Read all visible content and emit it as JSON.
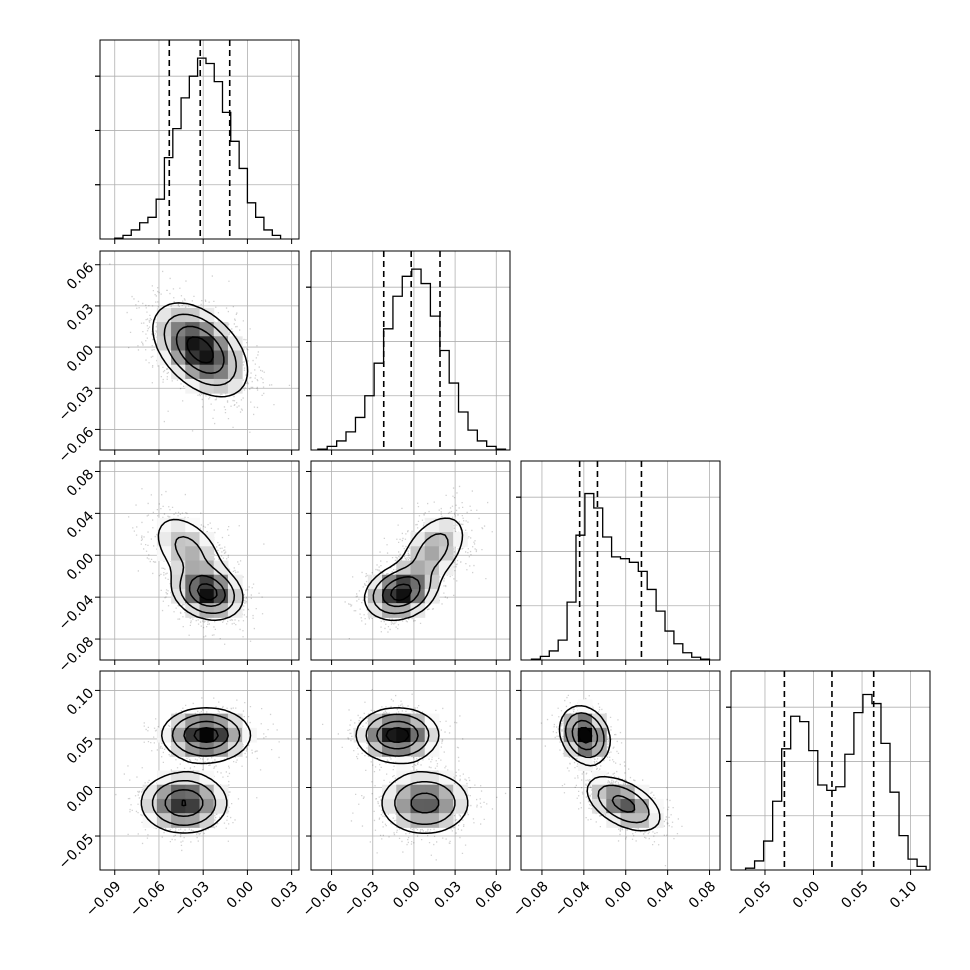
{
  "chart_data": {
    "type": "corner",
    "parameters": 4,
    "panel_grid": "lower-triangle",
    "grid": true,
    "colors": {
      "line": "#000000",
      "grid": "#b0b0b0",
      "density": "#000000"
    },
    "marginals": [
      {
        "param": 0,
        "type": "histogram-step",
        "xlim": [
          -0.1,
          0.035
        ],
        "bin_edges": [
          -0.09,
          -0.0844,
          -0.0788,
          -0.0731,
          -0.0675,
          -0.0619,
          -0.0563,
          -0.0506,
          -0.045,
          -0.0394,
          -0.0338,
          -0.0281,
          -0.0225,
          -0.0169,
          -0.0113,
          -0.0056,
          0.0,
          0.0056,
          0.0112,
          0.0169,
          0.0225
        ],
        "counts": [
          0.005,
          0.02,
          0.05,
          0.09,
          0.12,
          0.22,
          0.45,
          0.61,
          0.78,
          0.9,
          1.0,
          0.97,
          0.87,
          0.7,
          0.54,
          0.39,
          0.2,
          0.12,
          0.05,
          0.02
        ],
        "quantiles": [
          -0.053,
          -0.032,
          -0.012
        ],
        "yticks": [
          0.3,
          0.6,
          0.9
        ]
      },
      {
        "param": 1,
        "type": "histogram-step",
        "xlim": [
          -0.075,
          0.07
        ],
        "bin_edges": [
          -0.07,
          -0.0632,
          -0.0563,
          -0.0495,
          -0.0426,
          -0.0358,
          -0.029,
          -0.0221,
          -0.0153,
          -0.0085,
          -0.0016,
          0.0052,
          0.012,
          0.0189,
          0.0257,
          0.0325,
          0.0394,
          0.0462,
          0.053,
          0.0599,
          0.0667
        ],
        "counts": [
          0.005,
          0.02,
          0.05,
          0.1,
          0.18,
          0.3,
          0.48,
          0.67,
          0.85,
          0.96,
          1.0,
          0.92,
          0.74,
          0.55,
          0.37,
          0.21,
          0.11,
          0.05,
          0.02,
          0.005
        ],
        "quantiles": [
          -0.022,
          -0.002,
          0.019
        ],
        "yticks": [
          0.3,
          0.6,
          0.9
        ]
      },
      {
        "param": 2,
        "type": "histogram-step",
        "xlim": [
          -0.1,
          0.09
        ],
        "bin_edges": [
          -0.09,
          -0.0815,
          -0.073,
          -0.0645,
          -0.056,
          -0.0475,
          -0.039,
          -0.0305,
          -0.022,
          -0.0135,
          -0.005,
          0.0035,
          0.012,
          0.0205,
          0.029,
          0.0375,
          0.046,
          0.0545,
          0.063,
          0.0715,
          0.08
        ],
        "counts": [
          0.005,
          0.02,
          0.05,
          0.11,
          0.32,
          0.69,
          0.92,
          0.84,
          0.68,
          0.57,
          0.56,
          0.54,
          0.49,
          0.39,
          0.27,
          0.16,
          0.09,
          0.04,
          0.015,
          0.005
        ],
        "quantiles": [
          -0.044,
          -0.027,
          0.015
        ],
        "yticks": [
          0.3,
          0.6,
          0.9
        ]
      },
      {
        "param": 3,
        "type": "histogram-step",
        "xlim": [
          -0.085,
          0.12
        ],
        "bin_edges": [
          -0.07,
          -0.0607,
          -0.0514,
          -0.0421,
          -0.0328,
          -0.0235,
          -0.0142,
          -0.0049,
          0.0044,
          0.0137,
          0.023,
          0.0323,
          0.0416,
          0.0509,
          0.0602,
          0.0695,
          0.0788,
          0.0881,
          0.0974,
          0.1067,
          0.116
        ],
        "counts": [
          0.01,
          0.05,
          0.16,
          0.38,
          0.67,
          0.85,
          0.82,
          0.66,
          0.47,
          0.44,
          0.46,
          0.64,
          0.87,
          0.97,
          0.92,
          0.7,
          0.43,
          0.19,
          0.06,
          0.02
        ],
        "quantiles": [
          -0.03,
          0.019,
          0.062
        ],
        "yticks": [
          0.3,
          0.6,
          0.9
        ]
      }
    ],
    "joints": [
      {
        "x_param": 0,
        "y_param": 1,
        "xlim": [
          -0.1,
          0.035
        ],
        "ylim": [
          -0.075,
          0.07
        ],
        "components": [
          {
            "mx": -0.032,
            "my": -0.002,
            "sx": 0.016,
            "sy": 0.017,
            "rho": -0.45,
            "w": 1.0
          }
        ]
      },
      {
        "x_param": 0,
        "y_param": 2,
        "xlim": [
          -0.1,
          0.035
        ],
        "ylim": [
          -0.1,
          0.09
        ],
        "components": [
          {
            "mx": -0.027,
            "my": -0.036,
            "sx": 0.012,
            "sy": 0.013,
            "rho": -0.2,
            "w": 0.6
          },
          {
            "mx": -0.04,
            "my": 0.005,
            "sx": 0.014,
            "sy": 0.02,
            "rho": -0.45,
            "w": 0.4
          }
        ]
      },
      {
        "x_param": 1,
        "y_param": 2,
        "xlim": [
          -0.075,
          0.07
        ],
        "ylim": [
          -0.1,
          0.09
        ],
        "components": [
          {
            "mx": -0.01,
            "my": -0.036,
            "sx": 0.013,
            "sy": 0.013,
            "rho": 0.2,
            "w": 0.6
          },
          {
            "mx": 0.014,
            "my": 0.005,
            "sx": 0.014,
            "sy": 0.02,
            "rho": 0.45,
            "w": 0.4
          }
        ]
      },
      {
        "x_param": 0,
        "y_param": 3,
        "xlim": [
          -0.1,
          0.035
        ],
        "ylim": [
          -0.085,
          0.12
        ],
        "components": [
          {
            "mx": -0.028,
            "my": 0.054,
            "sx": 0.015,
            "sy": 0.014,
            "rho": 0.0,
            "w": 0.5
          },
          {
            "mx": -0.043,
            "my": -0.016,
            "sx": 0.015,
            "sy": 0.016,
            "rho": 0.0,
            "w": 0.5
          }
        ]
      },
      {
        "x_param": 1,
        "y_param": 3,
        "xlim": [
          -0.075,
          0.07
        ],
        "ylim": [
          -0.085,
          0.12
        ],
        "components": [
          {
            "mx": -0.012,
            "my": 0.054,
            "sx": 0.015,
            "sy": 0.014,
            "rho": 0.0,
            "w": 0.5
          },
          {
            "mx": 0.008,
            "my": -0.016,
            "sx": 0.017,
            "sy": 0.017,
            "rho": 0.0,
            "w": 0.5
          }
        ]
      },
      {
        "x_param": 2,
        "y_param": 3,
        "xlim": [
          -0.1,
          0.09
        ],
        "ylim": [
          -0.085,
          0.12
        ],
        "components": [
          {
            "mx": -0.039,
            "my": 0.054,
            "sx": 0.012,
            "sy": 0.015,
            "rho": -0.2,
            "w": 0.5
          },
          {
            "mx": -0.002,
            "my": -0.017,
            "sx": 0.019,
            "sy": 0.015,
            "rho": -0.5,
            "w": 0.5
          }
        ]
      }
    ],
    "x_tick_labels": [
      [
        "−0.09",
        "−0.06",
        "−0.03",
        "0.00",
        "0.03"
      ],
      [
        "−0.06",
        "−0.03",
        "0.00",
        "0.03",
        "0.06"
      ],
      [
        "−0.08",
        "−0.04",
        "0.00",
        "0.04",
        "0.08"
      ],
      [
        "−0.05",
        "0.00",
        "0.05",
        "0.10"
      ]
    ],
    "x_tick_values": [
      [
        -0.09,
        -0.06,
        -0.03,
        0.0,
        0.03
      ],
      [
        -0.06,
        -0.03,
        0.0,
        0.03,
        0.06
      ],
      [
        -0.08,
        -0.04,
        0.0,
        0.04,
        0.08
      ],
      [
        -0.05,
        0.0,
        0.05,
        0.1
      ]
    ],
    "y_tick_labels": [
      [],
      [
        "0.06",
        "0.03",
        "0.00",
        "−0.03",
        "−0.06"
      ],
      [
        "0.08",
        "0.04",
        "0.00",
        "−0.04",
        "−0.08"
      ],
      [
        "0.10",
        "0.05",
        "0.00",
        "−0.05"
      ]
    ],
    "y_tick_values": [
      [],
      [
        0.06,
        0.03,
        0.0,
        -0.03,
        -0.06
      ],
      [
        0.08,
        0.04,
        0.0,
        -0.04,
        -0.08
      ],
      [
        0.1,
        0.05,
        0.0,
        -0.05
      ]
    ],
    "contour_levels": [
      0.118,
      0.393,
      0.675,
      0.865
    ],
    "xlabels": [],
    "ylabels": [],
    "title": ""
  }
}
